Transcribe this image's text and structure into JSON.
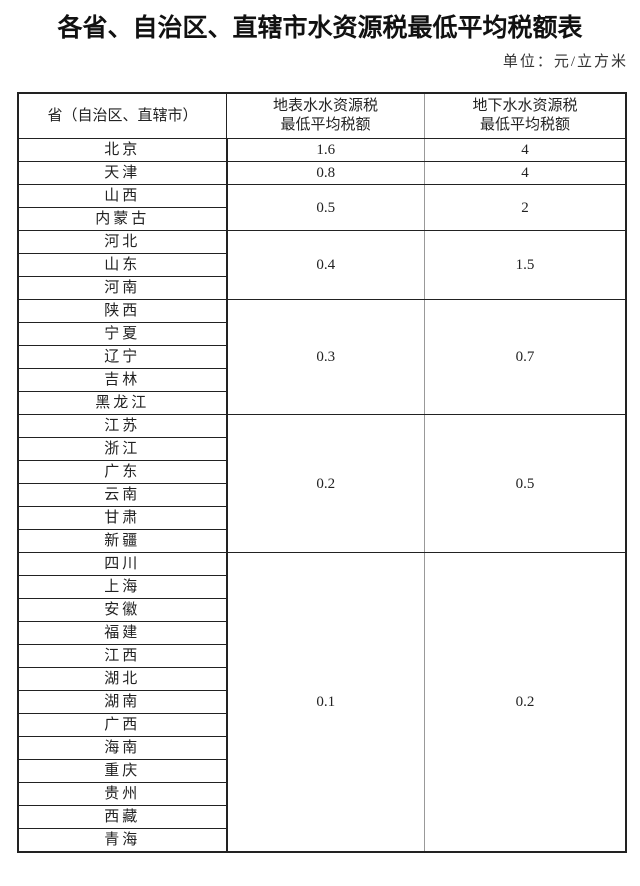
{
  "title": "各省、自治区、直辖市水资源税最低平均税额表",
  "unit": "单位：元/立方米",
  "headers": {
    "region": "省（自治区、直辖市）",
    "surface_line1": "地表水水资源税",
    "surface_line2": "最低平均税额",
    "ground_line1": "地下水水资源税",
    "ground_line2": "最低平均税额"
  },
  "groups": [
    {
      "regions": [
        "北京"
      ],
      "surface": "1.6",
      "ground": "4"
    },
    {
      "regions": [
        "天津"
      ],
      "surface": "0.8",
      "ground": "4"
    },
    {
      "regions": [
        "山西",
        "内蒙古"
      ],
      "surface": "0.5",
      "ground": "2"
    },
    {
      "regions": [
        "河北",
        "山东",
        "河南"
      ],
      "surface": "0.4",
      "ground": "1.5"
    },
    {
      "regions": [
        "陕西",
        "宁夏",
        "辽宁",
        "吉林",
        "黑龙江"
      ],
      "surface": "0.3",
      "ground": "0.7"
    },
    {
      "regions": [
        "江苏",
        "浙江",
        "广东",
        "云南",
        "甘肃",
        "新疆"
      ],
      "surface": "0.2",
      "ground": "0.5"
    },
    {
      "regions": [
        "四川",
        "上海",
        "安徽",
        "福建",
        "江西",
        "湖北",
        "湖南",
        "广西",
        "海南",
        "重庆",
        "贵州",
        "西藏",
        "青海"
      ],
      "surface": "0.1",
      "ground": "0.2"
    }
  ]
}
